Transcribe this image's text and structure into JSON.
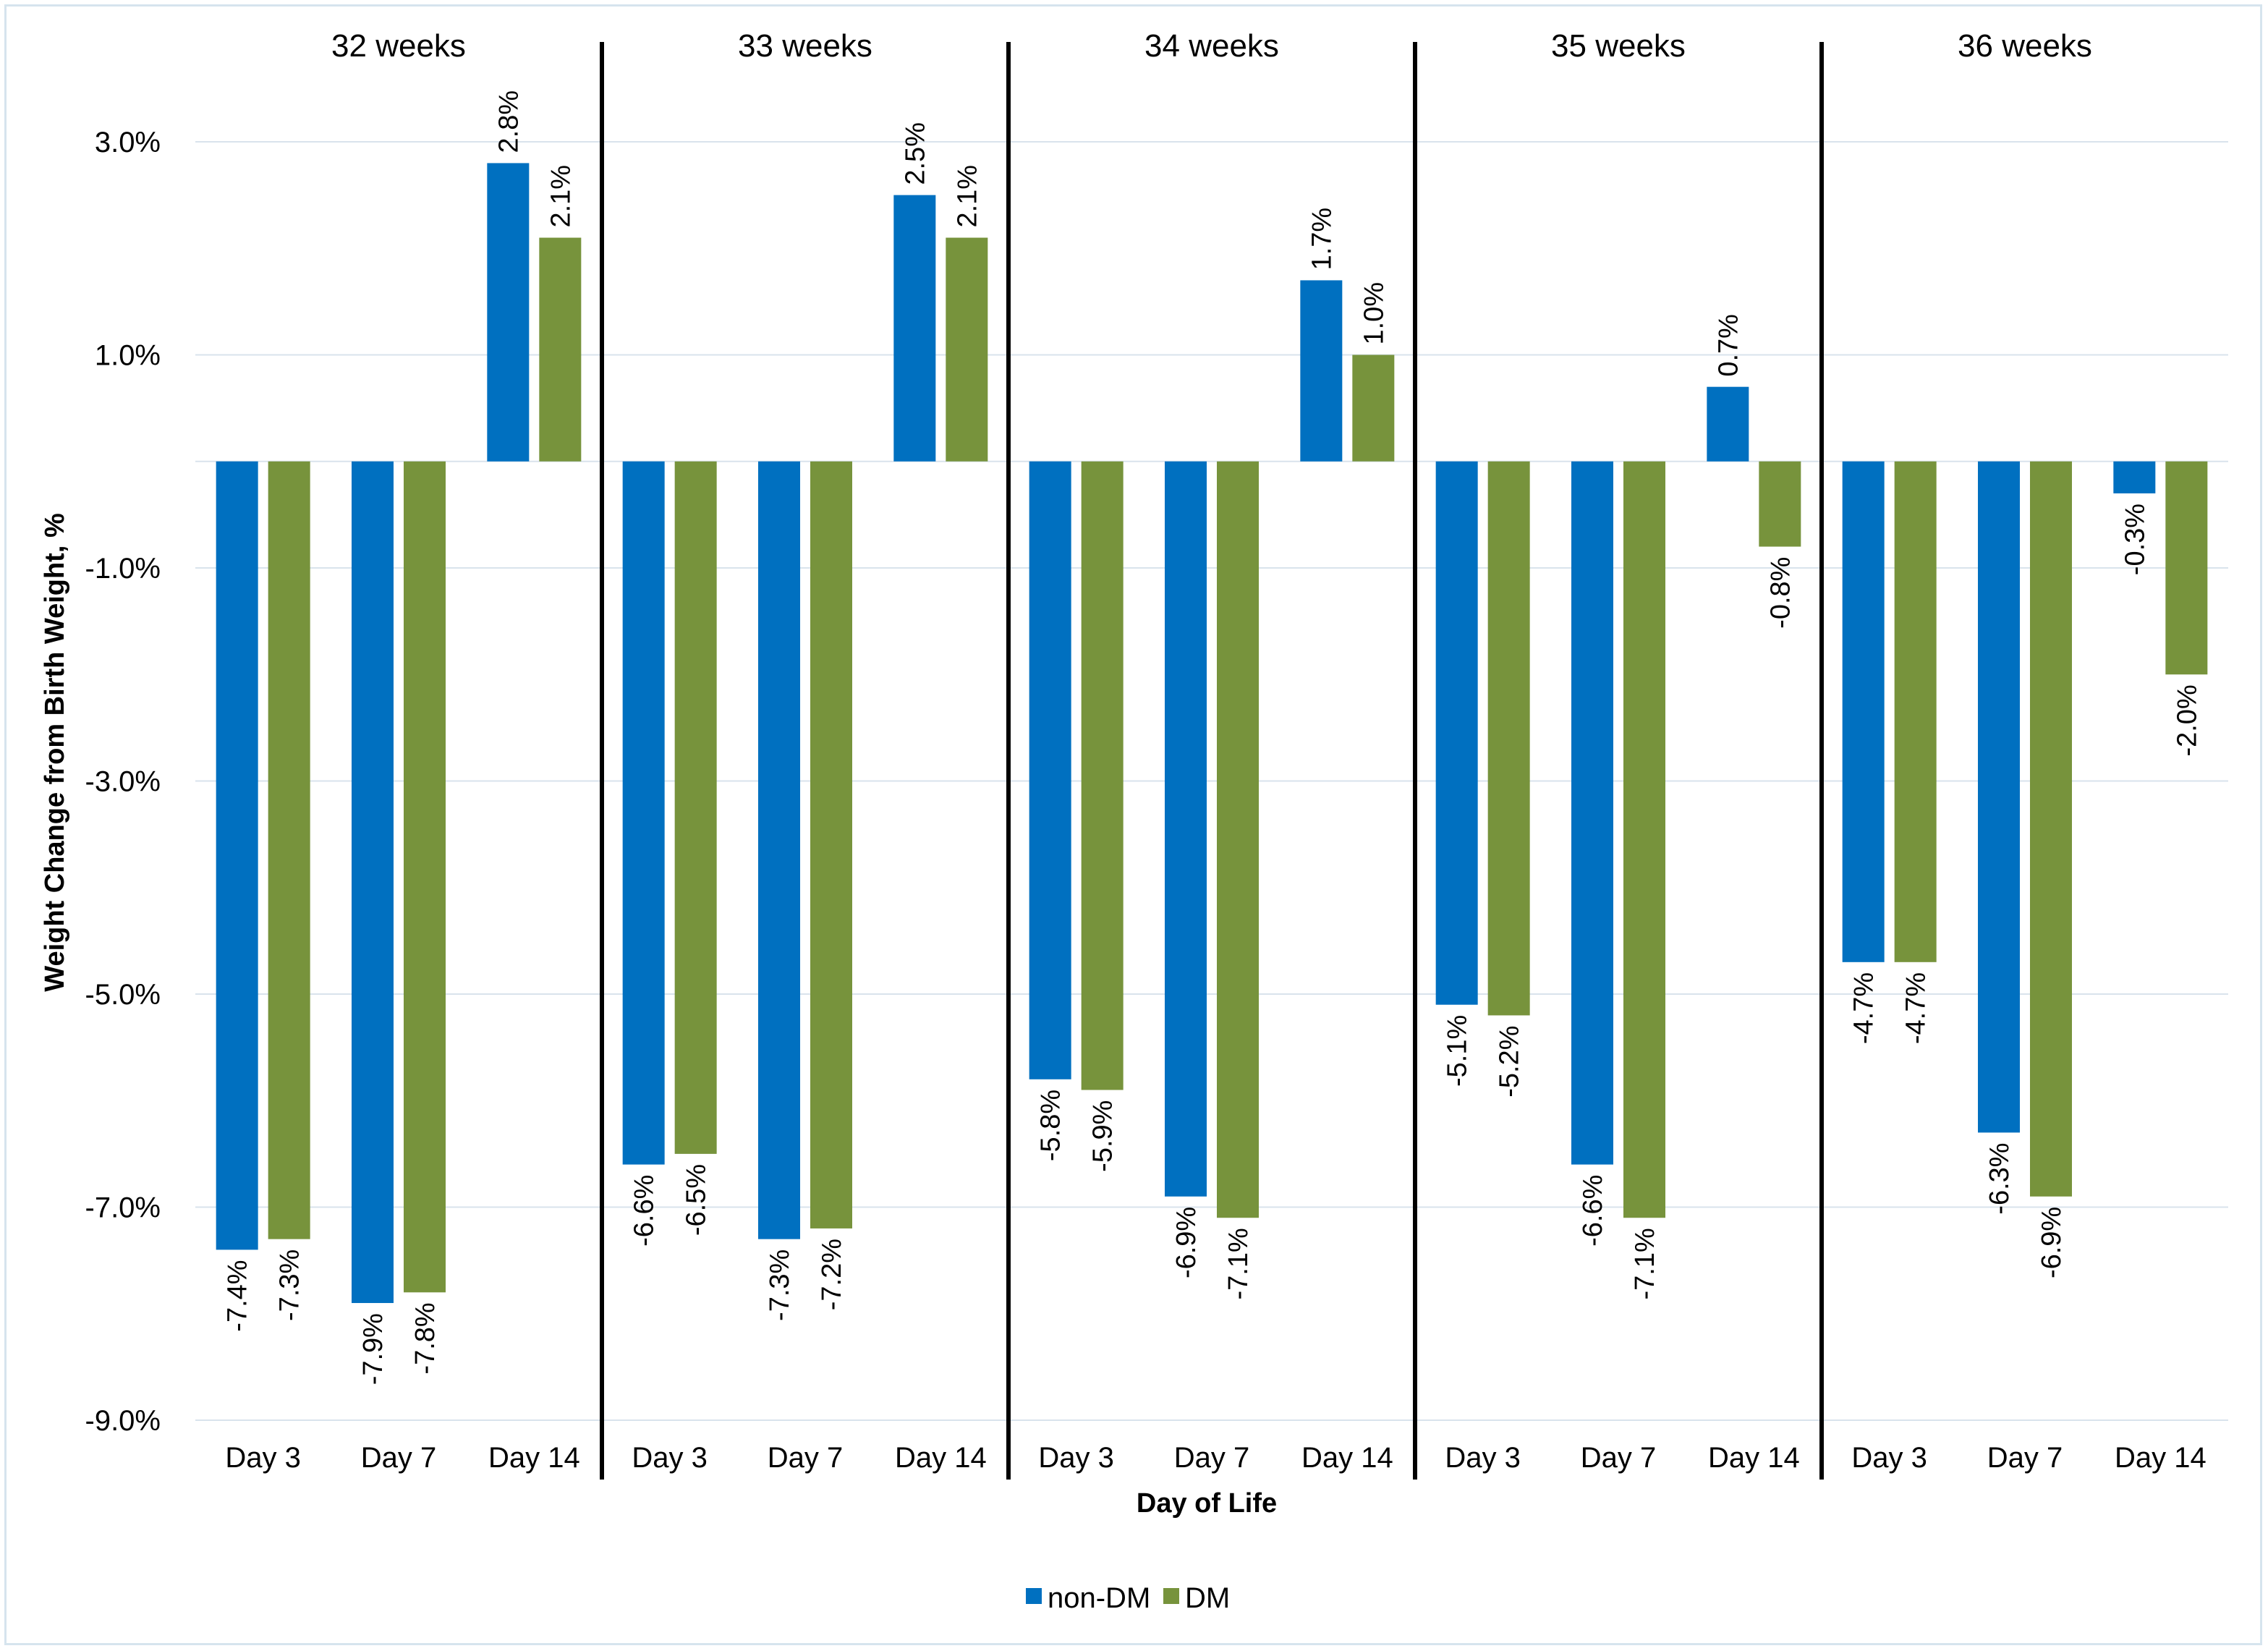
{
  "chart_data": {
    "type": "bar",
    "ylabel": "Weight Change from Birth Weight, %",
    "xlabel": "Day of Life",
    "ylim": [
      -9.0,
      3.0
    ],
    "yticks": [
      3.0,
      1.0,
      -1.0,
      -3.0,
      -5.0,
      -7.0,
      -9.0
    ],
    "ytick_labels": [
      "3.0%",
      "1.0%",
      "-1.0%",
      "-3.0%",
      "-5.0%",
      "-7.0%",
      "-9.0%"
    ],
    "grid": true,
    "legend_position": "bottom",
    "colors": {
      "non-DM": "#0070c0",
      "DM": "#77933c"
    },
    "series_names": [
      "non-DM",
      "DM"
    ],
    "groups": [
      {
        "label": "32 weeks",
        "categories": [
          "Day 3",
          "Day 7",
          "Day 14"
        ],
        "series": [
          {
            "name": "non-DM",
            "values": [
              -7.4,
              -7.9,
              2.8
            ],
            "labels": [
              "-7.4%",
              "-7.9%",
              "2.8%"
            ]
          },
          {
            "name": "DM",
            "values": [
              -7.3,
              -7.8,
              2.1
            ],
            "labels": [
              "-7.3%",
              "-7.8%",
              "2.1%"
            ]
          }
        ]
      },
      {
        "label": "33 weeks",
        "categories": [
          "Day 3",
          "Day 7",
          "Day 14"
        ],
        "series": [
          {
            "name": "non-DM",
            "values": [
              -6.6,
              -7.3,
              2.5
            ],
            "labels": [
              "-6.6%",
              "-7.3%",
              "2.5%"
            ]
          },
          {
            "name": "DM",
            "values": [
              -6.5,
              -7.2,
              2.1
            ],
            "labels": [
              "-6.5%",
              "-7.2%",
              "2.1%"
            ]
          }
        ]
      },
      {
        "label": "34 weeks",
        "categories": [
          "Day 3",
          "Day 7",
          "Day 14"
        ],
        "series": [
          {
            "name": "non-DM",
            "values": [
              -5.8,
              -6.9,
              1.7
            ],
            "labels": [
              "-5.8%",
              "-6.9%",
              "1.7%"
            ]
          },
          {
            "name": "DM",
            "values": [
              -5.9,
              -7.1,
              1.0
            ],
            "labels": [
              "-5.9%",
              "-7.1%",
              "1.0%"
            ]
          }
        ]
      },
      {
        "label": "35 weeks",
        "categories": [
          "Day 3",
          "Day 7",
          "Day 14"
        ],
        "series": [
          {
            "name": "non-DM",
            "values": [
              -5.1,
              -6.6,
              0.7
            ],
            "labels": [
              "-5.1%",
              "-6.6%",
              "0.7%"
            ]
          },
          {
            "name": "DM",
            "values": [
              -5.2,
              -7.1,
              -0.8
            ],
            "labels": [
              "-5.2%",
              "-7.1%",
              "-0.8%"
            ]
          }
        ]
      },
      {
        "label": "36 weeks",
        "categories": [
          "Day 3",
          "Day 7",
          "Day 14"
        ],
        "series": [
          {
            "name": "non-DM",
            "values": [
              -4.7,
              -6.3,
              -0.3
            ],
            "labels": [
              "-4.7%",
              "-6.3%",
              "-0.3%"
            ]
          },
          {
            "name": "DM",
            "values": [
              -4.7,
              -6.9,
              -2.0
            ],
            "labels": [
              "-4.7%",
              "-6.9%",
              "-2.0%"
            ]
          }
        ]
      }
    ]
  }
}
